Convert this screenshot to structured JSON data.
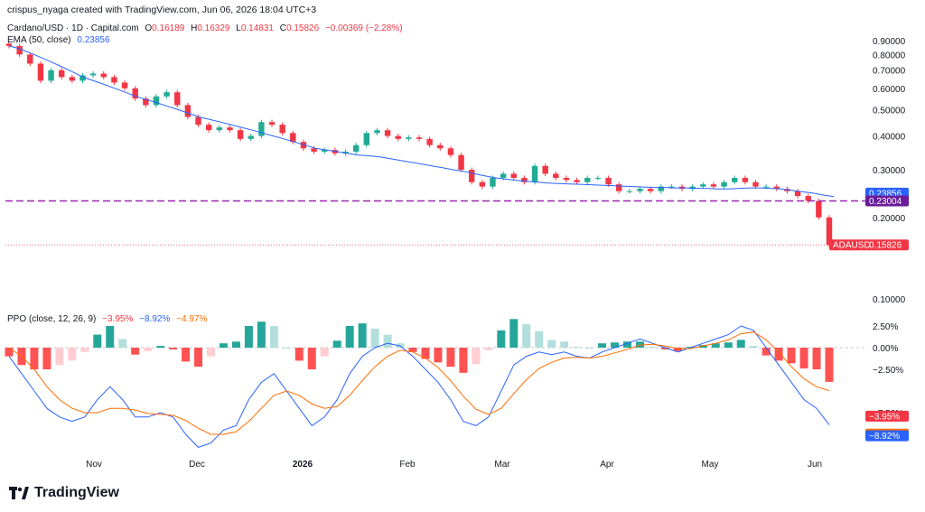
{
  "header": {
    "author_line": "crispus_nyaga created with TradingView.com, Jun 06, 2026 18:04 UTC+3",
    "symbol": "Cardano/USD · 1D · Capital.com",
    "ohlc": [
      {
        "label": "O",
        "value": "0.16189"
      },
      {
        "label": "H",
        "value": "0.16329"
      },
      {
        "label": "L",
        "value": "0.14831"
      },
      {
        "label": "C",
        "value": "0.15826"
      }
    ],
    "change": "−0.00369 (−2.28%)",
    "ema_label": "EMA (50, close)",
    "ema_value": "0.23856",
    "ppo_label": "PPO (close, 12, 26, 9)",
    "ppo_values": [
      "−3.95%",
      "−8.92%",
      "−4.97%"
    ]
  },
  "brand": "TradingView",
  "colors": {
    "up": "#22ab94",
    "down": "#f23645",
    "ema": "#2962ff",
    "ppo": "#2962ff",
    "signal": "#ff6d00",
    "level": "#9c27b0",
    "hist_up_strong": "#26a69a",
    "hist_up_weak": "#b2dfdb",
    "hist_down_strong": "#ff5252",
    "hist_down_weak": "#ffcdd2"
  },
  "chart_data": [
    {
      "type": "candlestick",
      "title": "Cardano/USD · 1D · Capital.com",
      "y_axis": {
        "scale": "log",
        "ticks": [
          "0.90000",
          "0.80000",
          "0.70000",
          "0.60000",
          "0.50000",
          "0.40000",
          "0.30000",
          "0.20000",
          "0.10000"
        ]
      },
      "x_axis": {
        "ticks": [
          "Nov",
          "Dec",
          "2026",
          "Feb",
          "Mar",
          "Apr",
          "May",
          "Jun"
        ]
      },
      "close_series": [
        0.86,
        0.8,
        0.74,
        0.64,
        0.7,
        0.66,
        0.64,
        0.67,
        0.68,
        0.66,
        0.63,
        0.6,
        0.55,
        0.52,
        0.56,
        0.58,
        0.52,
        0.47,
        0.44,
        0.42,
        0.43,
        0.42,
        0.39,
        0.4,
        0.45,
        0.44,
        0.41,
        0.38,
        0.36,
        0.35,
        0.355,
        0.345,
        0.35,
        0.37,
        0.41,
        0.42,
        0.4,
        0.39,
        0.395,
        0.39,
        0.37,
        0.36,
        0.34,
        0.3,
        0.27,
        0.26,
        0.28,
        0.29,
        0.28,
        0.27,
        0.31,
        0.29,
        0.28,
        0.275,
        0.27,
        0.28,
        0.28,
        0.265,
        0.25,
        0.25,
        0.255,
        0.25,
        0.26,
        0.26,
        0.255,
        0.26,
        0.265,
        0.26,
        0.27,
        0.28,
        0.27,
        0.26,
        0.26,
        0.255,
        0.25,
        0.24,
        0.23,
        0.2,
        0.158
      ],
      "ema": {
        "name": "EMA (50, close)",
        "values": [
          0.86,
          0.84,
          0.81,
          0.78,
          0.75,
          0.72,
          0.69,
          0.66,
          0.64,
          0.62,
          0.6,
          0.58,
          0.56,
          0.545,
          0.53,
          0.515,
          0.5,
          0.485,
          0.47,
          0.46,
          0.45,
          0.44,
          0.43,
          0.42,
          0.41,
          0.4,
          0.39,
          0.38,
          0.37,
          0.36,
          0.355,
          0.35,
          0.345,
          0.34,
          0.338,
          0.335,
          0.33,
          0.325,
          0.32,
          0.315,
          0.31,
          0.305,
          0.3,
          0.296,
          0.29,
          0.285,
          0.28,
          0.277,
          0.274,
          0.272,
          0.27,
          0.268,
          0.267,
          0.266,
          0.265,
          0.264,
          0.263,
          0.262,
          0.261,
          0.26,
          0.259,
          0.258,
          0.258,
          0.257,
          0.257,
          0.256,
          0.256,
          0.255,
          0.255,
          0.256,
          0.257,
          0.257,
          0.256,
          0.255,
          0.252,
          0.249,
          0.246,
          0.242,
          0.23856
        ]
      },
      "levels": [
        {
          "label": "0.23004",
          "value": 0.23004
        }
      ],
      "last_price_label": "ADAUSD",
      "last_price": "0.15826",
      "ema_last": "0.23856"
    },
    {
      "type": "ppo",
      "title": "PPO (close, 12, 26, 9)",
      "y_axis": {
        "ticks": [
          "2.50%",
          "0.00%",
          "−2.50%",
          "−7.50%",
          "−10.00%"
        ]
      },
      "series": [
        {
          "name": "ppo",
          "values": [
            -1,
            -3,
            -5,
            -7,
            -8,
            -8.5,
            -8,
            -6,
            -4.5,
            -6,
            -8,
            -8,
            -7.5,
            -8,
            -10,
            -11.5,
            -11,
            -9.5,
            -9,
            -6,
            -4,
            -3,
            -5,
            -7,
            -9,
            -8,
            -6,
            -3,
            -1,
            0,
            0.5,
            0.2,
            -1,
            -2.5,
            -4,
            -6,
            -8.5,
            -9,
            -8,
            -5,
            -2,
            -1,
            -0.5,
            -0.8,
            -0.5,
            -1,
            -1.2,
            -0.5,
            0,
            0.5,
            1,
            0.5,
            0,
            -0.5,
            0,
            0.5,
            1,
            1.5,
            2.5,
            2,
            0,
            -2,
            -4,
            -6,
            -7,
            -8.92
          ]
        },
        {
          "name": "signal",
          "values": [
            0,
            -1,
            -2.5,
            -4.5,
            -6,
            -7,
            -7.5,
            -7.5,
            -7,
            -7,
            -7.2,
            -7.6,
            -7.7,
            -7.8,
            -8.4,
            -9.3,
            -10,
            -10,
            -9.7,
            -8.5,
            -7,
            -5.5,
            -5,
            -5.5,
            -6.5,
            -7,
            -6.8,
            -5.5,
            -3.8,
            -2.2,
            -1,
            -0.3,
            -0.5,
            -1.2,
            -2.3,
            -3.8,
            -5.6,
            -7.1,
            -7.7,
            -7,
            -5.3,
            -3.7,
            -2.4,
            -1.7,
            -1.2,
            -1.1,
            -1.2,
            -1,
            -0.6,
            -0.2,
            0.3,
            0.4,
            0.2,
            -0.1,
            -0.1,
            0.2,
            0.5,
            0.9,
            1.6,
            1.8,
            0.9,
            -0.5,
            -2.2,
            -3.6,
            -4.5,
            -4.97
          ]
        },
        {
          "name": "histogram",
          "values": [
            -1,
            -2,
            -2.5,
            -2.5,
            -2,
            -1.5,
            -0.5,
            1.5,
            2.5,
            1,
            -0.8,
            -0.4,
            0.2,
            -0.2,
            -1.6,
            -2.2,
            -1,
            0.5,
            0.7,
            2.5,
            3,
            2.5,
            0,
            -1.5,
            -2.5,
            -1,
            0.8,
            2.5,
            2.8,
            2.2,
            1.5,
            0.5,
            -0.5,
            -1.3,
            -1.7,
            -2.2,
            -2.9,
            -1.9,
            -0.3,
            2,
            3.3,
            2.7,
            1.9,
            0.9,
            0.7,
            0.1,
            0,
            0.5,
            0.6,
            0.7,
            0.7,
            0.1,
            -0.2,
            -0.4,
            0.1,
            0.3,
            0.5,
            0.6,
            0.9,
            0.2,
            -0.9,
            -1.5,
            -1.8,
            -2.4,
            -2.5,
            -3.95
          ]
        }
      ],
      "last_labels": {
        "histogram": "−3.95%",
        "ppo": "−8.92%",
        "signal": "−4.97%"
      }
    }
  ]
}
